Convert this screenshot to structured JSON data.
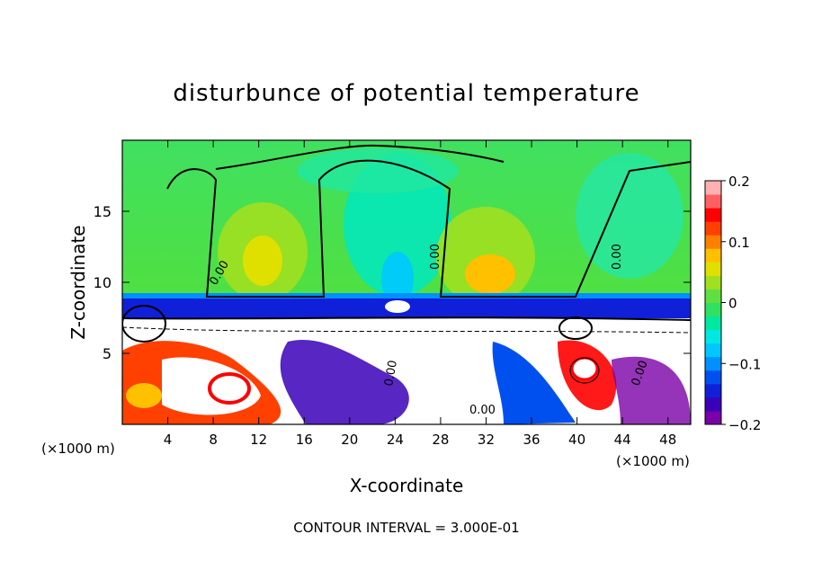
{
  "chart_data": {
    "type": "heatmap",
    "title": "disturbunce of potential temperature",
    "xlabel": "X-coordinate",
    "ylabel": "Z-coordinate",
    "x_unit_left": "(×1000 m)",
    "x_unit_right": "(×1000 m)",
    "xlim": [
      0,
      50
    ],
    "ylim": [
      0,
      20
    ],
    "xticks": [
      4,
      8,
      12,
      16,
      20,
      24,
      28,
      32,
      36,
      40,
      44,
      48
    ],
    "xtick_labels": [
      "4",
      "8",
      "12",
      "16",
      "20",
      "24",
      "28",
      "32",
      "36",
      "40",
      "44",
      "48"
    ],
    "yticks": [
      5,
      10,
      15
    ],
    "ytick_labels": [
      "5",
      "10",
      "15"
    ],
    "colorbar": {
      "range": [
        -0.2,
        0.2
      ],
      "ticks": [
        0.2,
        0.1,
        0,
        -0.1,
        -0.2
      ],
      "tick_labels": [
        "0.2",
        "0.1",
        "0",
        "−0.1",
        "−0.2"
      ],
      "colors": [
        "#7a00a8",
        "#3a00b8",
        "#1020d8",
        "#0050f0",
        "#0090ff",
        "#00c8ff",
        "#00e8e0",
        "#00e8a0",
        "#30e060",
        "#60e040",
        "#a0e020",
        "#e0e000",
        "#ffc000",
        "#ff8000",
        "#ff4000",
        "#ff0000",
        "#ff6060",
        "#ffb0b0"
      ]
    },
    "contour_labels": [
      "0.00",
      "0.00",
      "0.00",
      "0.00",
      "0.00",
      "0.00"
    ],
    "annotation": "CONTOUR INTERVAL = 3.000E-01",
    "regions": [
      {
        "name": "upper-layer",
        "z_range": [
          8.5,
          20
        ],
        "value_approx": 0.0
      },
      {
        "name": "warm-cell-left",
        "x_center": 12,
        "z_center": 11.5,
        "value_approx": 0.08
      },
      {
        "name": "warm-cell-right",
        "x_center": 32,
        "z_center": 10.5,
        "value_approx": 0.1
      },
      {
        "name": "cool-plume",
        "x_center": 24,
        "z_center": 13,
        "value_approx": -0.04
      },
      {
        "name": "cold-band",
        "z_range": [
          7.5,
          9
        ],
        "value_approx": -0.12
      },
      {
        "name": "boundary-layer",
        "z_range": [
          0,
          7.5
        ],
        "value_approx": "mixed −0.2 to 0.2"
      }
    ]
  },
  "colors": {
    "background": "#ffffff",
    "axis": "#000000"
  }
}
